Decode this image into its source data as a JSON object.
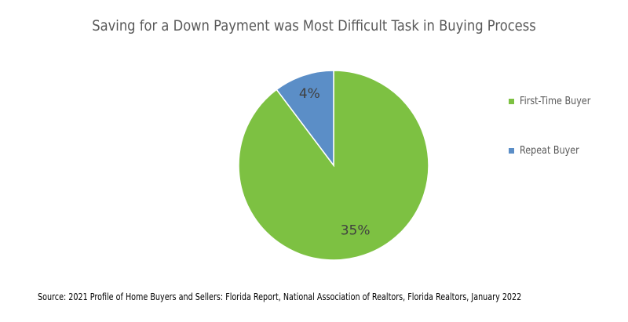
{
  "chart_data": {
    "type": "pie",
    "title": "Saving for a Down Payment was Most Difficult Task in Buying Process",
    "categories": [
      "First-Time Buyer",
      "Repeat Buyer"
    ],
    "values": [
      35,
      4
    ],
    "data_labels": [
      "35%",
      "4%"
    ],
    "colors": [
      "#7dc142",
      "#5b8ec7"
    ],
    "legend_position": "right",
    "start_angle": "12 o'clock, clockwise"
  },
  "source": "Source: 2021 Profile of Home Buyers and Sellers: Florida Report, National Association of Realtors, Florida Realtors, January 2022"
}
